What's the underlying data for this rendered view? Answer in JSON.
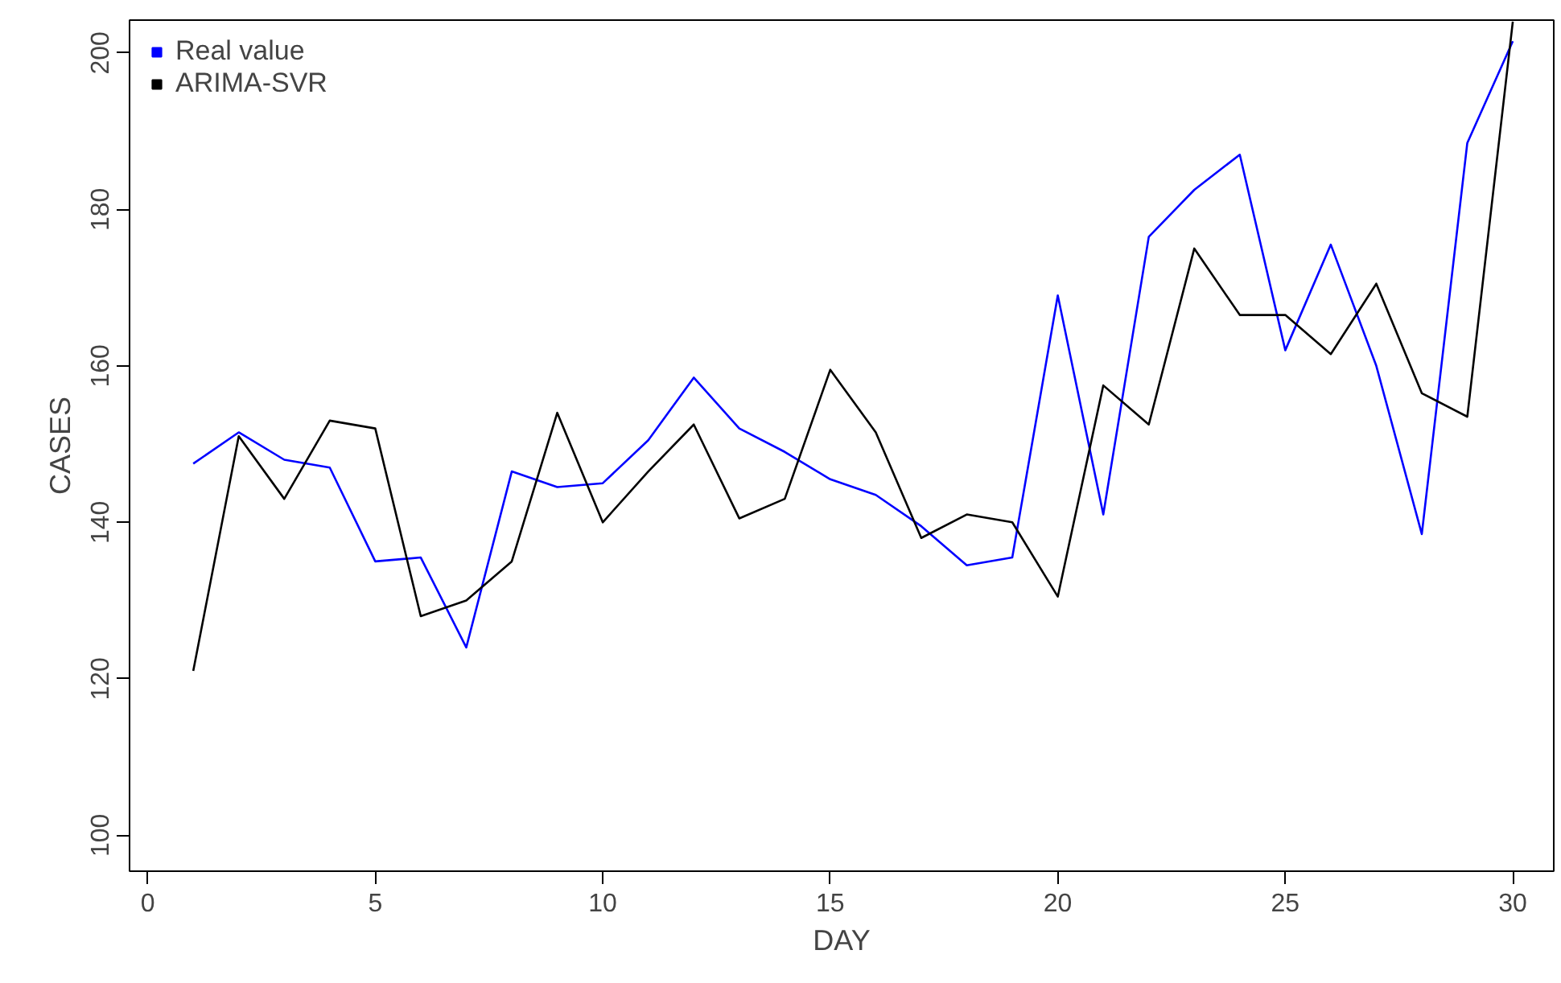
{
  "chart_data": {
    "type": "line",
    "xlabel": "DAY",
    "ylabel": "CASES",
    "x": [
      1,
      2,
      3,
      4,
      5,
      6,
      7,
      8,
      9,
      10,
      11,
      12,
      13,
      14,
      15,
      16,
      17,
      18,
      19,
      20,
      21,
      22,
      23,
      24,
      25,
      26,
      27,
      28,
      29,
      30
    ],
    "series": [
      {
        "name": "Real value",
        "color": "#0000ff",
        "values": [
          147.5,
          151.5,
          148,
          147,
          135,
          135.5,
          124,
          146.5,
          144.5,
          145,
          150.5,
          158.5,
          152,
          149,
          145.5,
          143.5,
          139.5,
          134.5,
          135.5,
          169,
          141,
          176.5,
          182.5,
          187,
          162,
          175.5,
          160,
          138.5,
          188.5,
          201.5
        ]
      },
      {
        "name": "ARIMA-SVR",
        "color": "#000000",
        "values": [
          121,
          151,
          143,
          153,
          152,
          128,
          130,
          135,
          154,
          140,
          146.5,
          152.5,
          140.5,
          143,
          159.5,
          151.5,
          138,
          141,
          140,
          130.5,
          157.5,
          152.5,
          175,
          166.5,
          166.5,
          161.5,
          170.5,
          156.5,
          153.5,
          204
        ]
      }
    ],
    "xlim": [
      -0.4,
      30.9
    ],
    "ylim": [
      95.4,
      204.2
    ],
    "xticks": [
      0,
      5,
      10,
      15,
      20,
      25,
      30
    ],
    "yticks": [
      100,
      120,
      140,
      160,
      180,
      200
    ],
    "grid": false,
    "legend": "top left",
    "marker": "none",
    "line_style": "solid"
  }
}
